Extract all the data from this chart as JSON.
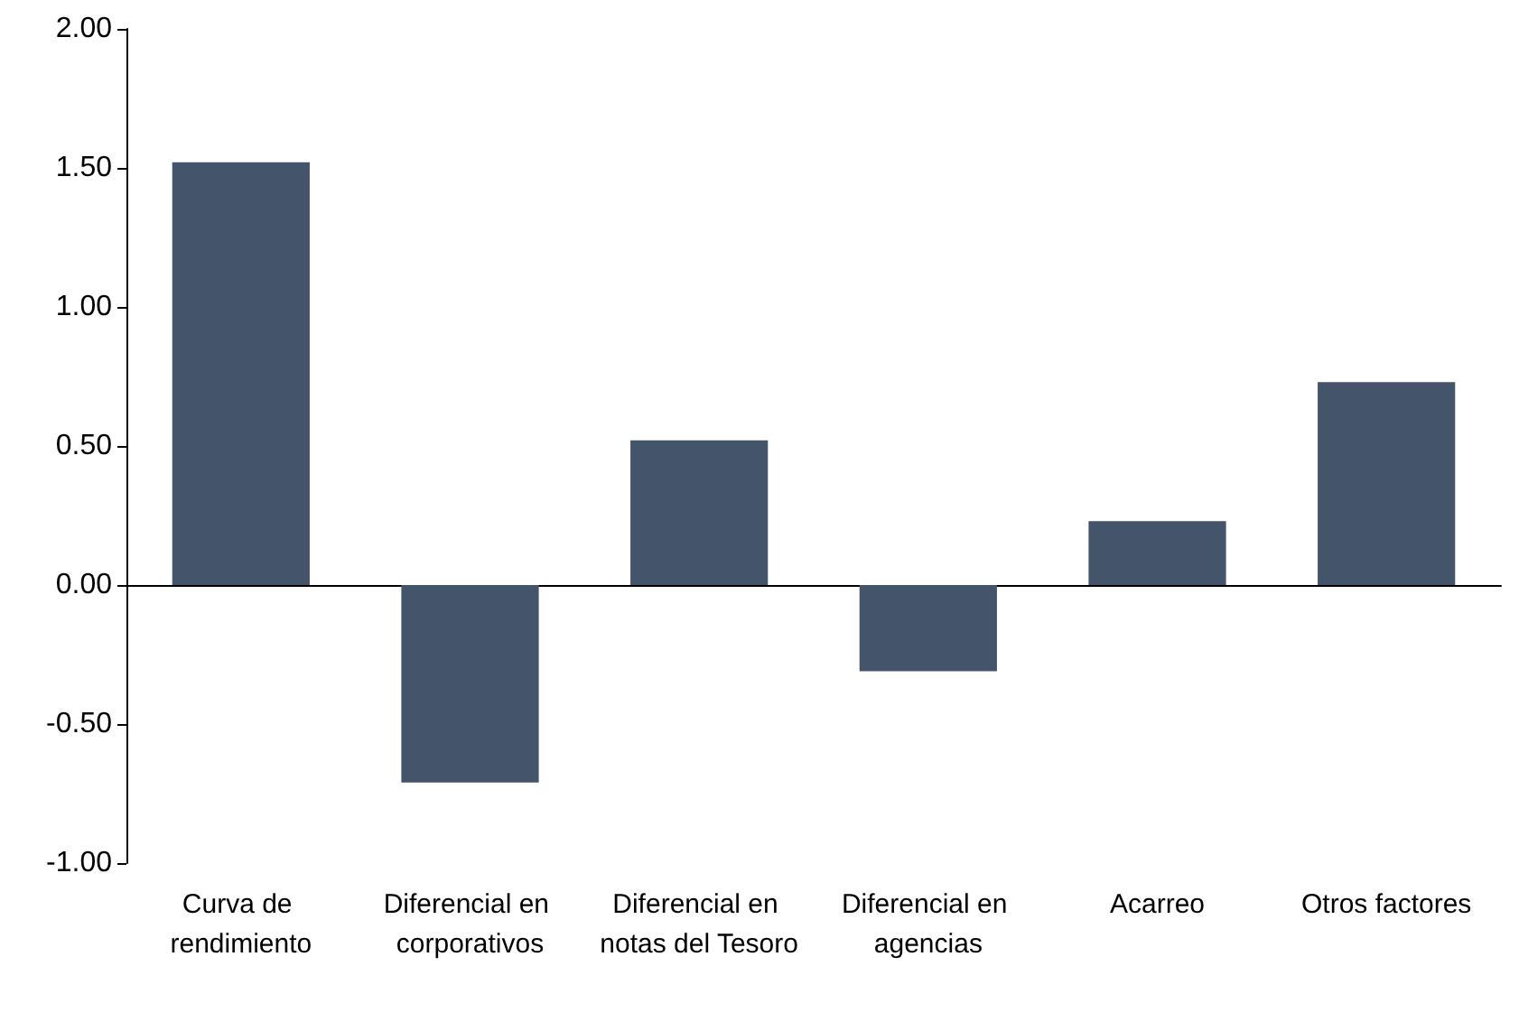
{
  "chart_data": {
    "type": "bar",
    "categories": [
      "Curva de rendimiento",
      "Diferencial en corporativos",
      "Diferencial en notas del Tesoro",
      "Diferencial en agencias",
      "Acarreo",
      "Otros factores"
    ],
    "values": [
      1.52,
      -0.71,
      0.52,
      -0.31,
      0.23,
      0.73
    ],
    "color": "#44546a",
    "ylim": [
      -1,
      2
    ],
    "yticks": [
      {
        "value": -1,
        "label": "-1.00"
      },
      {
        "value": -0.5,
        "label": "-0.50"
      },
      {
        "value": 0,
        "label": "0.00"
      },
      {
        "value": 0.5,
        "label": "0.50"
      },
      {
        "value": 1,
        "label": "1.00"
      },
      {
        "value": 1.5,
        "label": "1.50"
      },
      {
        "value": 2,
        "label": "2.00"
      }
    ]
  }
}
